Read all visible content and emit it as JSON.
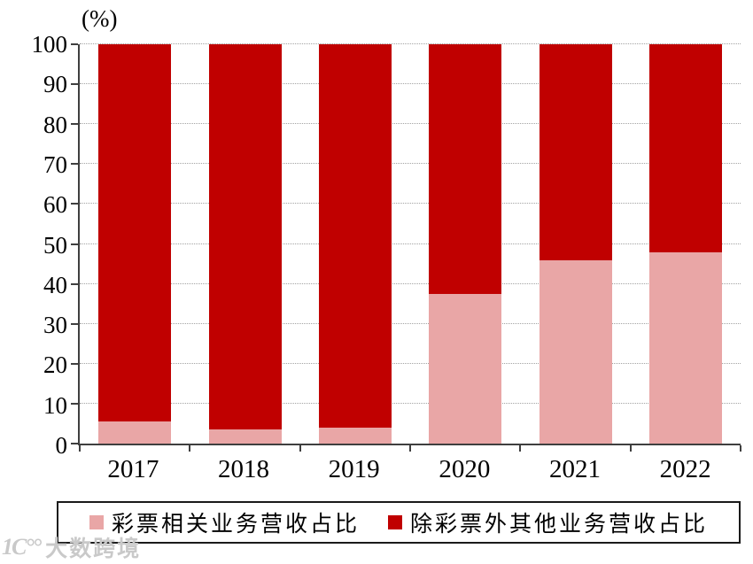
{
  "chart_data": {
    "type": "bar",
    "stacked": true,
    "categories": [
      "2017",
      "2018",
      "2019",
      "2020",
      "2021",
      "2022"
    ],
    "series": [
      {
        "name": "彩票相关业务营收占比",
        "color": "#E9A6A6",
        "values": [
          5.5,
          3.5,
          4.0,
          37.5,
          46.0,
          48.0
        ]
      },
      {
        "name": "除彩票外其他业务营收占比",
        "color": "#C00000",
        "values": [
          94.5,
          96.5,
          96.0,
          62.5,
          54.0,
          52.0
        ]
      }
    ],
    "title": "",
    "xlabel": "",
    "ylabel": "(%)",
    "ylim": [
      0,
      100
    ],
    "yticks": [
      0,
      10,
      20,
      30,
      40,
      50,
      60,
      70,
      80,
      90,
      100
    ],
    "grid": "horizontal-dotted",
    "legend_position": "bottom"
  },
  "watermark": {
    "logo_text": "1C°°",
    "brand_text": "大数跨境"
  }
}
